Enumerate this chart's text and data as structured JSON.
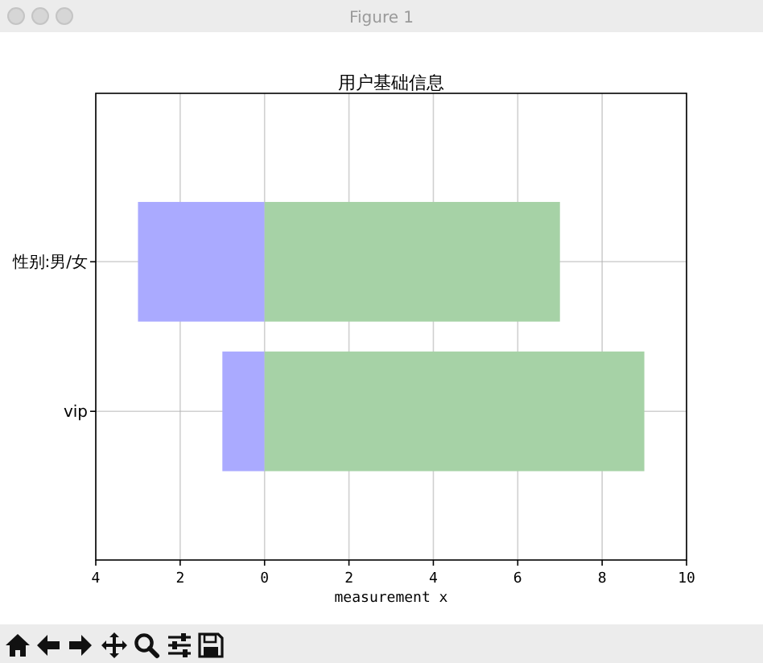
{
  "chart_data": {
    "type": "bar",
    "title": "用户基础信息",
    "xlabel": "measurement x",
    "orientation": "horizontal",
    "stacked": true,
    "categories": [
      "性别:男/女",
      "vip"
    ],
    "series": [
      {
        "color": "#aaaaff",
        "values": [
          -3,
          -1
        ]
      },
      {
        "color": "#a6d2a6",
        "values": [
          7,
          9
        ]
      }
    ],
    "xlim": [
      -4,
      10
    ],
    "xticks": [
      {
        "value": -4,
        "label": "4"
      },
      {
        "value": -2,
        "label": "2"
      },
      0,
      2,
      4,
      6,
      8,
      10
    ],
    "grid": true,
    "annotations": [
      "Figure 1"
    ]
  }
}
